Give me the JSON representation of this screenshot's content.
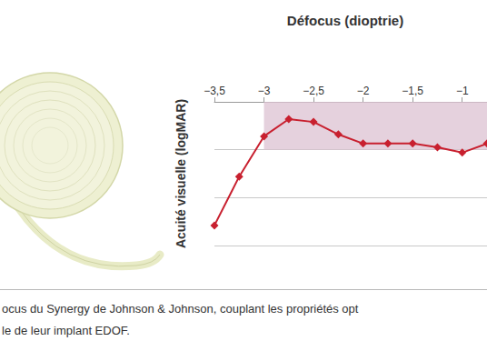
{
  "chart_data": {
    "type": "line",
    "title": "Défocus (dioptrie)",
    "y_label": "Acuité visuelle (logMAR)",
    "x": [
      -3.5,
      -3.25,
      -3,
      -2.75,
      -2.5,
      -2.25,
      -2,
      -1.75,
      -1.5,
      -1.25,
      -1,
      -0.75
    ],
    "values": [
      0.258,
      0.156,
      0.072,
      0.036,
      0.042,
      0.068,
      0.087,
      0.087,
      0.087,
      0.095,
      0.106,
      0.087
    ],
    "color": "#c8202f",
    "marker": "diamond",
    "xlim": [
      -3.5,
      -0.75
    ],
    "xticks": [
      {
        "value": -3.5,
        "label": "−3,5"
      },
      {
        "value": -3,
        "label": "−3"
      },
      {
        "value": -2.5,
        "label": "−2,5"
      },
      {
        "value": -2,
        "label": "−2"
      },
      {
        "value": -1.5,
        "label": "−1,5"
      },
      {
        "value": -1,
        "label": "−1"
      }
    ],
    "ylim": [
      0.3,
      0
    ],
    "yticks": [
      0,
      0.1,
      0.2,
      0.3
    ],
    "grid": true,
    "tick_labels": "x",
    "highlight": {
      "x": [
        -3,
        -0.75
      ],
      "y": [
        0,
        0.1
      ],
      "color": "#dcc2d1"
    }
  },
  "caption": [
    "ocus du Synergy de Johnson & Johnson, couplant les propriétés opt",
    "le de leur implant EDOF."
  ]
}
